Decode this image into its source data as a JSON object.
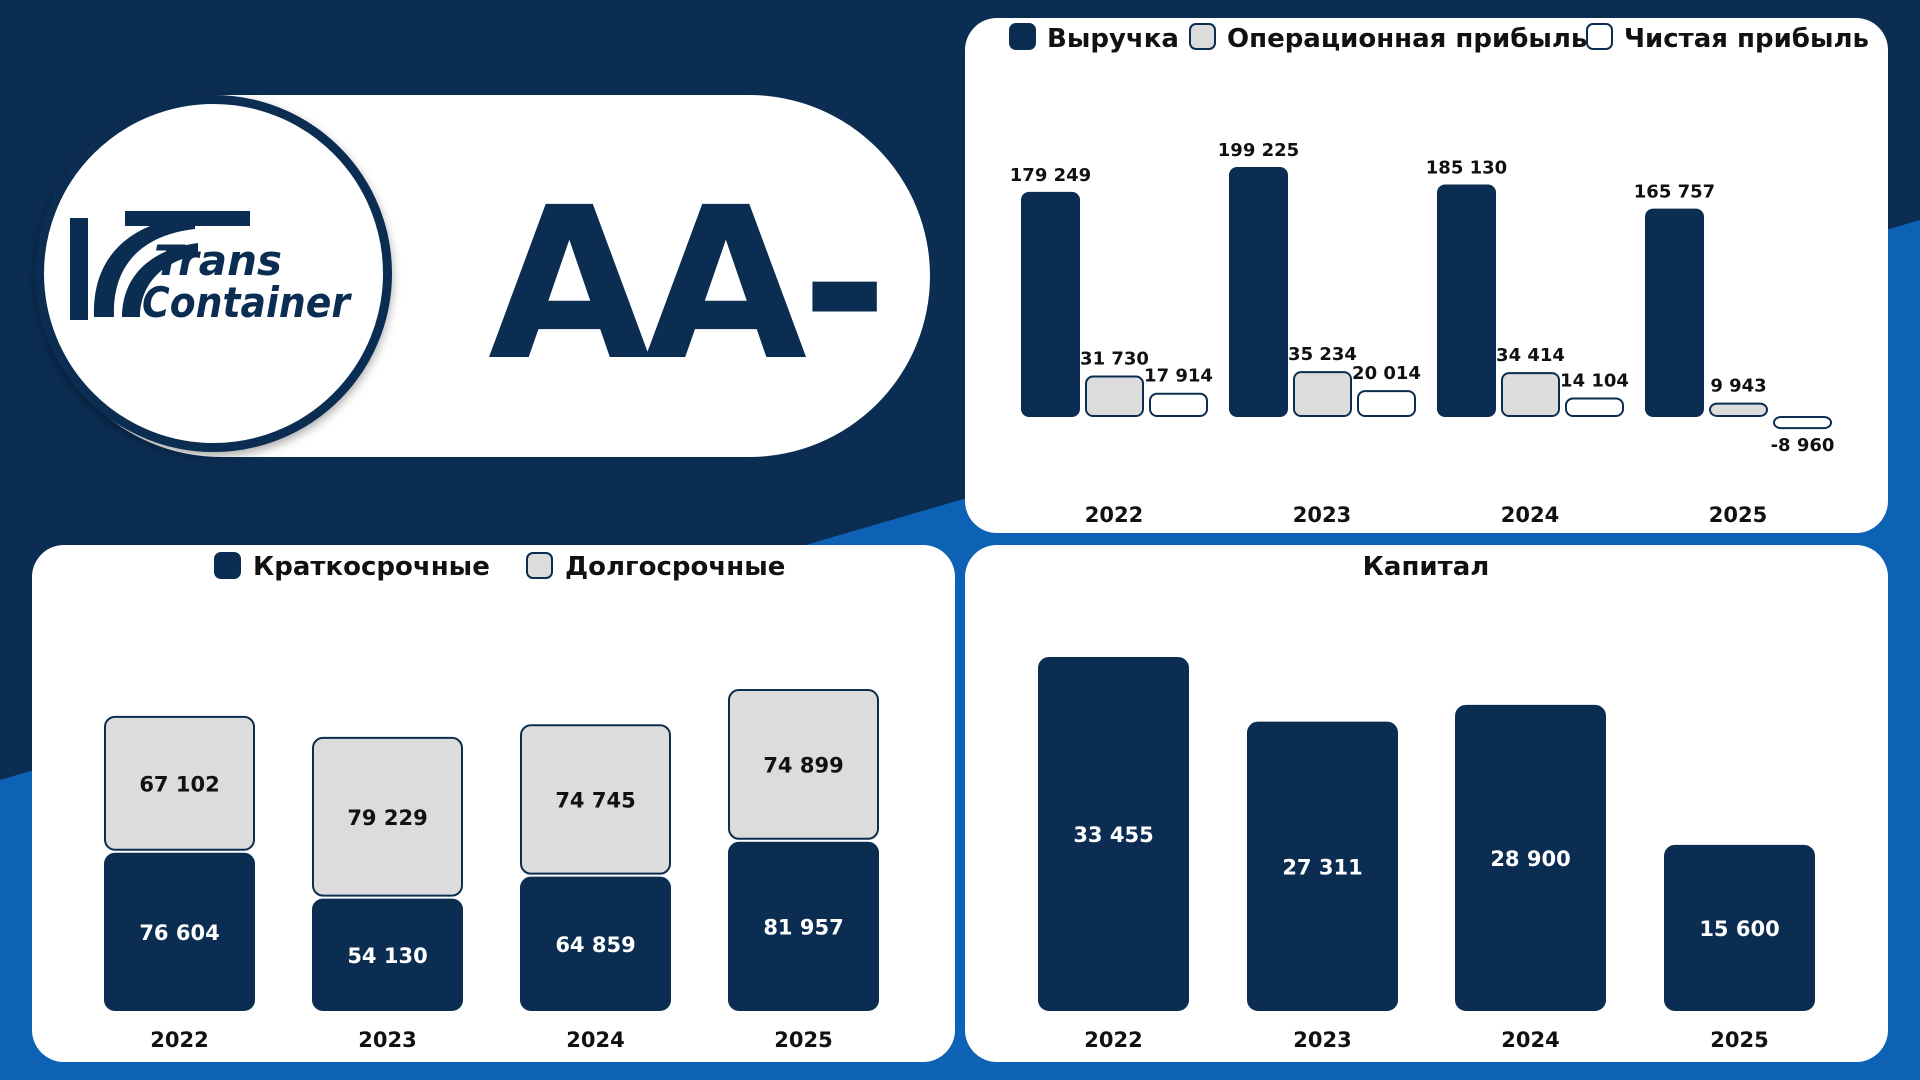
{
  "brand": {
    "logo_text_line1": "Trans",
    "logo_text_line2": "Container",
    "rating": "AA-",
    "colors": {
      "navy": "#0b2d52",
      "blue": "#0e62b5",
      "light_gray": "#dcdcdc",
      "white": "#ffffff"
    }
  },
  "chart_data": [
    {
      "id": "income",
      "type": "bar",
      "categories": [
        "2022",
        "2023",
        "2024",
        "2025"
      ],
      "series": [
        {
          "name": "Выручка",
          "values": [
            179249,
            199225,
            185130,
            165757
          ]
        },
        {
          "name": "Операционная прибыль",
          "values": [
            31730,
            35234,
            34414,
            9943
          ]
        },
        {
          "name": "Чистая прибыль",
          "values": [
            17914,
            20014,
            14104,
            -8960
          ]
        }
      ],
      "labels": [
        [
          "179 249",
          "199 225",
          "185 130",
          "165 757"
        ],
        [
          "31 730",
          "35 234",
          "34 414",
          "9 943"
        ],
        [
          "17 914",
          "20 014",
          "14 104",
          "-8 960"
        ]
      ],
      "legend_position": "top",
      "grid": false
    },
    {
      "id": "debt",
      "type": "bar",
      "stacked": true,
      "categories": [
        "2022",
        "2023",
        "2024",
        "2025"
      ],
      "series": [
        {
          "name": "Краткосрочные",
          "values": [
            76604,
            54130,
            64859,
            81957
          ]
        },
        {
          "name": "Долгосрочные",
          "values": [
            67102,
            79229,
            74745,
            74899
          ]
        }
      ],
      "labels": [
        [
          "76 604",
          "54 130",
          "64 859",
          "81 957"
        ],
        [
          "67 102",
          "79 229",
          "74 745",
          "74 899"
        ]
      ],
      "legend_position": "top",
      "grid": false
    },
    {
      "id": "capital",
      "type": "bar",
      "title": "Капитал",
      "categories": [
        "2022",
        "2023",
        "2024",
        "2025"
      ],
      "values": [
        33455,
        27311,
        28900,
        15600
      ],
      "labels": [
        "33 455",
        "27 311",
        "28 900",
        "15 600"
      ],
      "grid": false
    }
  ]
}
